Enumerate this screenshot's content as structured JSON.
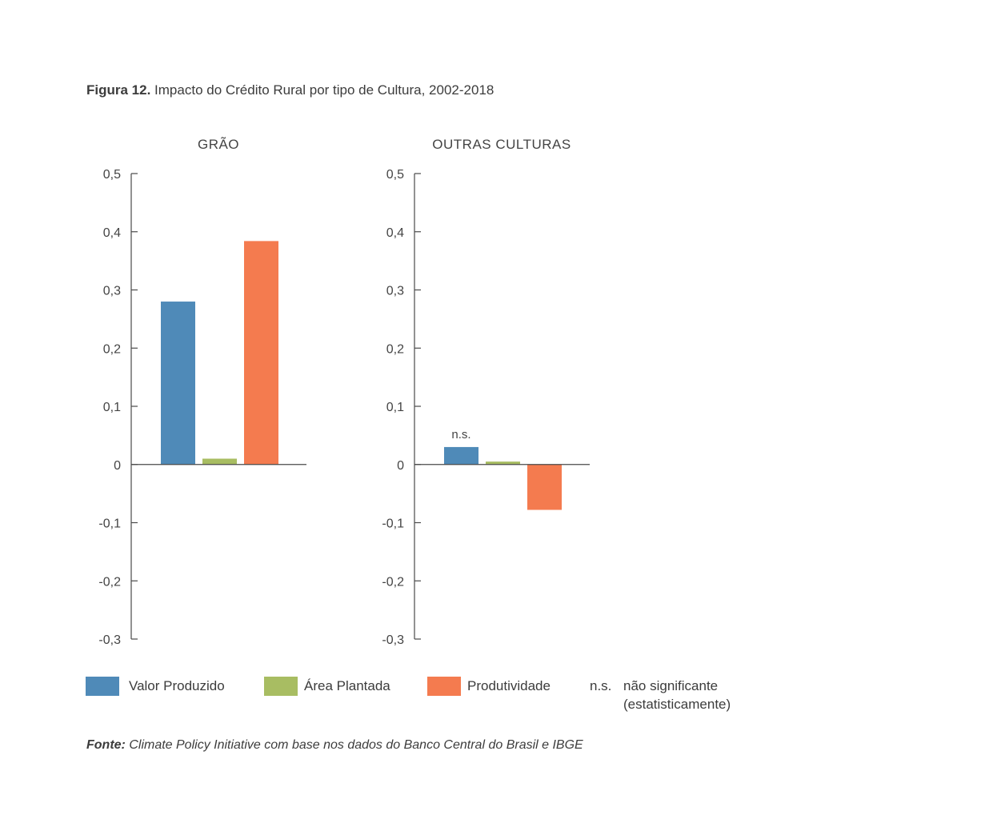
{
  "figure": {
    "number_label": "Figura 12.",
    "title": "Impacto do Crédito Rural por tipo de Cultura, 2002-2018"
  },
  "colors": {
    "valor_produzido": "#4f8ab8",
    "area_plantada": "#a8bd62",
    "produtividade": "#f47b4f"
  },
  "chart_data": [
    {
      "type": "bar",
      "title": "GRÃO",
      "categories": [
        "Valor Produzido",
        "Área Plantada",
        "Produtividade"
      ],
      "values": [
        0.28,
        0.01,
        0.384
      ],
      "ylim": [
        -0.3,
        0.5
      ],
      "yticks": [
        0.5,
        0.4,
        0.3,
        0.2,
        0.1,
        0,
        -0.1,
        -0.2,
        -0.3
      ],
      "ytick_labels": [
        "0,5",
        "0,4",
        "0,3",
        "0,2",
        "0,1",
        "0",
        "-0,1",
        "-0,2",
        "-0,3"
      ],
      "annotations": []
    },
    {
      "type": "bar",
      "title": "OUTRAS CULTURAS",
      "categories": [
        "Valor Produzido",
        "Área Plantada",
        "Produtividade"
      ],
      "values": [
        0.03,
        0.005,
        -0.078
      ],
      "ylim": [
        -0.3,
        0.5
      ],
      "yticks": [
        0.5,
        0.4,
        0.3,
        0.2,
        0.1,
        0,
        -0.1,
        -0.2,
        -0.3
      ],
      "ytick_labels": [
        "0,5",
        "0,4",
        "0,3",
        "0,2",
        "0,1",
        "0",
        "-0,1",
        "-0,2",
        "-0,3"
      ],
      "annotations": [
        {
          "category": "Valor Produzido",
          "text": "n.s."
        }
      ]
    }
  ],
  "legend": {
    "items": [
      {
        "label": "Valor Produzido"
      },
      {
        "label": "Área Plantada"
      },
      {
        "label": "Produtividade"
      }
    ],
    "ns_abbrev": "n.s.",
    "ns_line1": "não significante",
    "ns_line2": "(estatisticamente)"
  },
  "source": {
    "label": "Fonte:",
    "text": "Climate Policy Initiative com base nos dados do Banco Central do Brasil e IBGE"
  }
}
